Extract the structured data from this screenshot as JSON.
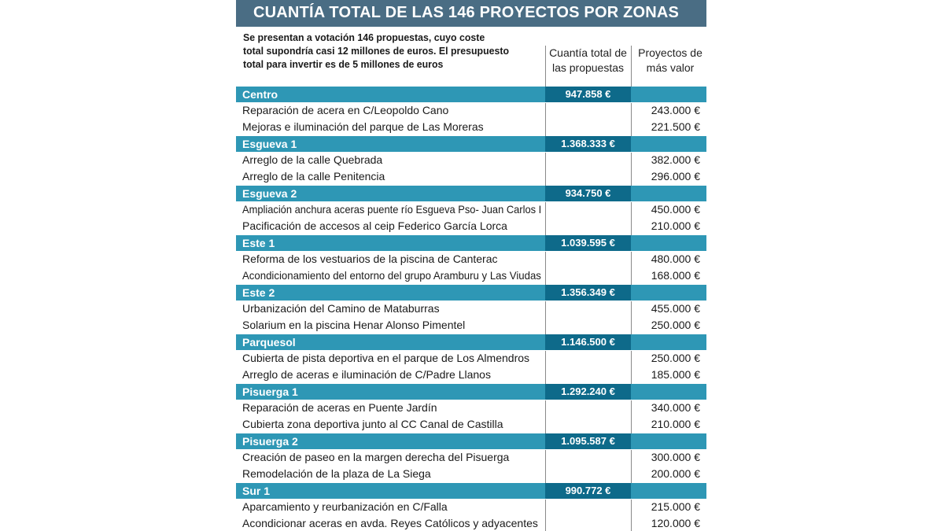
{
  "title": "CUANTÍA TOTAL DE LAS 146 PROYECTOS POR ZONAS",
  "intro": [
    "Se presentan a votación 146 propuestas, cuyo coste",
    "total supondría casi 12 millones de euros. El presupuesto",
    "total para invertir es de 5 millones de euros"
  ],
  "columns": {
    "total": [
      "Cuantía total de",
      "las propuestas"
    ],
    "top": [
      "Proyectos de",
      "más valor"
    ]
  },
  "zones": [
    {
      "name": "Centro",
      "total": "947.858  €",
      "projects": [
        {
          "name": "Reparación de acera en C/Leopoldo Cano",
          "value": "243.000 €"
        },
        {
          "name": "Mejoras e iluminación del parque de Las Moreras",
          "value": "221.500 €"
        }
      ]
    },
    {
      "name": "Esgueva 1",
      "total": "1.368.333 €",
      "projects": [
        {
          "name": "Arreglo de la calle Quebrada",
          "value": "382.000 €"
        },
        {
          "name": "Arreglo de la calle Penitencia",
          "value": "296.000 €"
        }
      ]
    },
    {
      "name": "Esgueva 2",
      "total": "934.750 €",
      "projects": [
        {
          "name": "Ampliación anchura aceras puente río Esgueva Pso- Juan Carlos I",
          "value": "450.000 €"
        },
        {
          "name": "Pacificación de accesos al ceip Federico García Lorca",
          "value": "210.000 €"
        }
      ]
    },
    {
      "name": "Este 1",
      "total": "1.039.595 €",
      "projects": [
        {
          "name": "Reforma de los vestuarios de la piscina de Canterac",
          "value": "480.000 €"
        },
        {
          "name": "Acondicionamiento del entorno del grupo Aramburu y Las Viudas",
          "value": "168.000 €"
        }
      ]
    },
    {
      "name": "Este 2",
      "total": "1.356.349 €",
      "projects": [
        {
          "name": "Urbanización del Camino de Mataburras",
          "value": "455.000 €"
        },
        {
          "name": "Solarium en la piscina Henar Alonso Pimentel",
          "value": "250.000 €"
        }
      ]
    },
    {
      "name": "Parquesol",
      "total": "1.146.500 €",
      "projects": [
        {
          "name": "Cubierta de pista deportiva en el parque de Los Almendros",
          "value": "250.000 €"
        },
        {
          "name": "Arreglo de aceras e iluminación de C/Padre Llanos",
          "value": "185.000 €"
        }
      ]
    },
    {
      "name": "Pisuerga 1",
      "total": "1.292.240 €",
      "projects": [
        {
          "name": "Reparación de aceras en Puente Jardín",
          "value": "340.000 €"
        },
        {
          "name": "Cubierta zona deportiva junto al CC Canal de Castilla",
          "value": "210.000 €"
        }
      ]
    },
    {
      "name": "Pisuerga 2",
      "total": "1.095.587 €",
      "projects": [
        {
          "name": "Creación de paseo en la margen derecha del Pisuerga",
          "value": "300.000 €"
        },
        {
          "name": "Remodelación de la plaza de La Siega",
          "value": "200.000 €"
        }
      ]
    },
    {
      "name": "Sur 1",
      "total": "990.772 €",
      "projects": [
        {
          "name": "Aparcamiento y reurbanización en C/Falla",
          "value": "215.000 €"
        },
        {
          "name": "Acondicionar aceras en avda. Reyes Católicos y adyacentes",
          "value": "120.000 €"
        }
      ]
    }
  ]
}
